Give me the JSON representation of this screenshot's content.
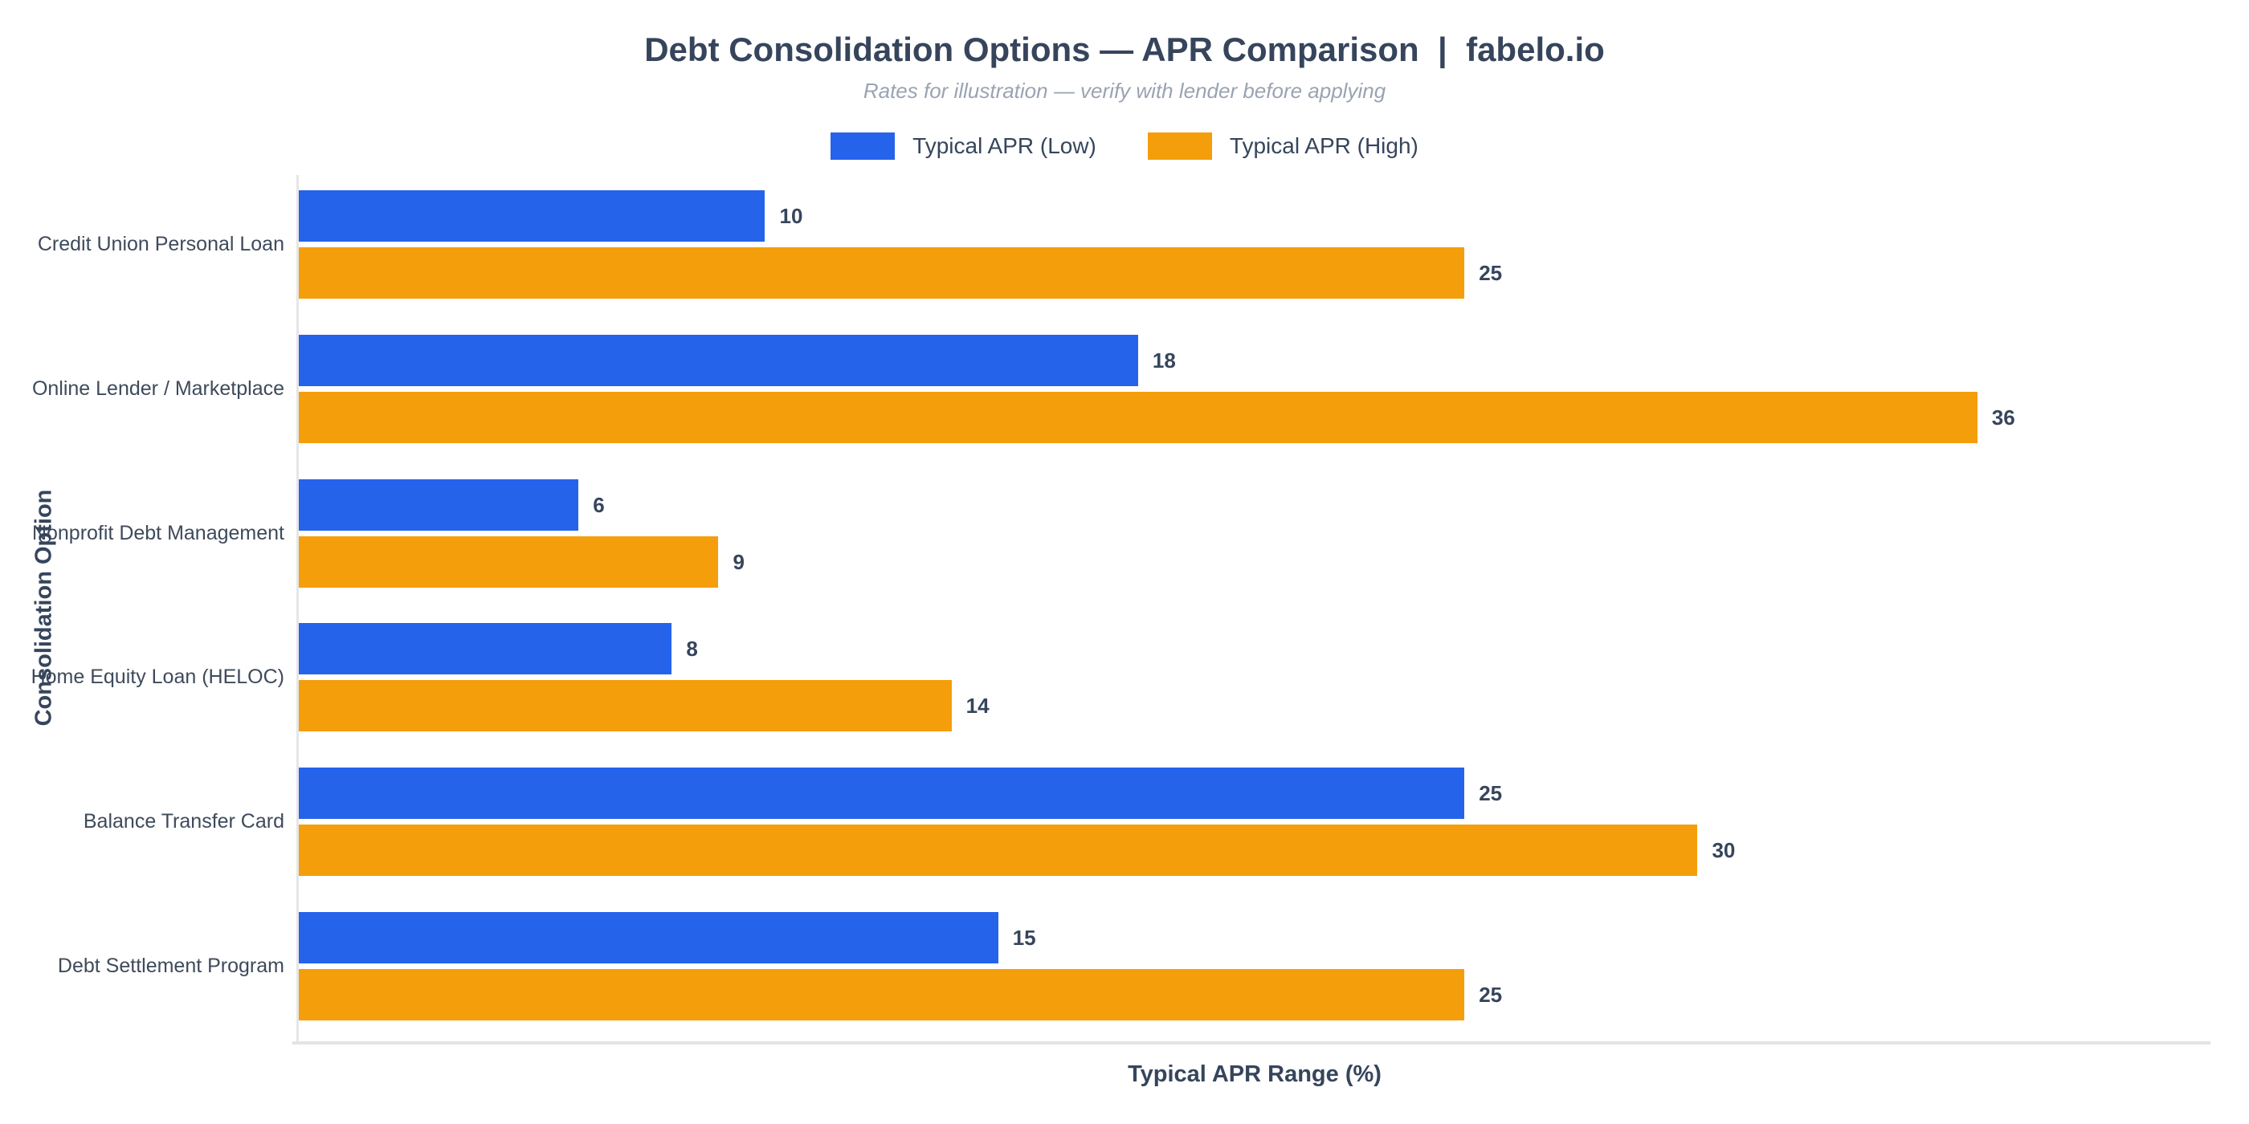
{
  "chart_data": {
    "type": "bar",
    "orientation": "horizontal",
    "title": "Debt Consolidation Options — APR Comparison  |  fabelo.io",
    "subtitle": "Rates for illustration — verify with lender before applying",
    "xlabel": "Typical APR Range (%)",
    "ylabel": "Consolidation Option",
    "categories": [
      "Credit Union Personal Loan",
      "Online Lender / Marketplace",
      "Nonprofit Debt Management",
      "Home Equity Loan (HELOC)",
      "Balance Transfer Card",
      "Debt Settlement Program"
    ],
    "series": [
      {
        "name": "Typical APR (Low)",
        "color": "#2563EB",
        "values": [
          10,
          18,
          6,
          8,
          25,
          15
        ]
      },
      {
        "name": "Typical APR (High)",
        "color": "#F59E0B",
        "values": [
          25,
          36,
          9,
          14,
          30,
          25
        ]
      }
    ],
    "xlim": [
      0,
      41
    ],
    "grid": false,
    "legend_position": "top-center",
    "value_labels": true,
    "colors": {
      "text": "#36455C",
      "category_label": "#3E4A5B",
      "subtitle": "#9AA3B2",
      "axis_line": "#E6E6E6",
      "background": "#FFFFFF"
    }
  }
}
